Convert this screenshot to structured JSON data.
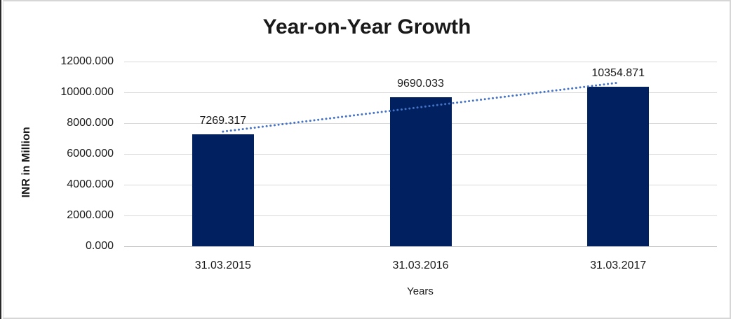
{
  "window": {
    "title": "Year-on-Year Growth chart"
  },
  "colors": {
    "bar": "#002060",
    "trendline": "#4472C4",
    "gridline": "#d9d9d9",
    "axis_line": "#c6c6c6",
    "text": "#1a1a1a",
    "frame_border": "#d6d6d6"
  },
  "chart_data": {
    "type": "bar",
    "title": "Year-on-Year Growth",
    "xlabel": "Years",
    "ylabel": "INR in Million",
    "categories": [
      "31.03.2015",
      "31.03.2016",
      "31.03.2017"
    ],
    "values": [
      7269.317,
      9690.033,
      10354.871
    ],
    "data_labels": [
      "7269.317",
      "9690.033",
      "10354.871"
    ],
    "ylim": [
      0,
      12000
    ],
    "ytick_step": 2000,
    "ytick_labels": [
      "0.000",
      "2000.000",
      "4000.000",
      "6000.000",
      "8000.000",
      "10000.000",
      "12000.000"
    ],
    "grid": true,
    "legend": "none",
    "trendline": {
      "type": "linear",
      "style": "dotted",
      "from_category": "31.03.2015",
      "to_category": "31.03.2017",
      "color": "#4472C4"
    }
  }
}
